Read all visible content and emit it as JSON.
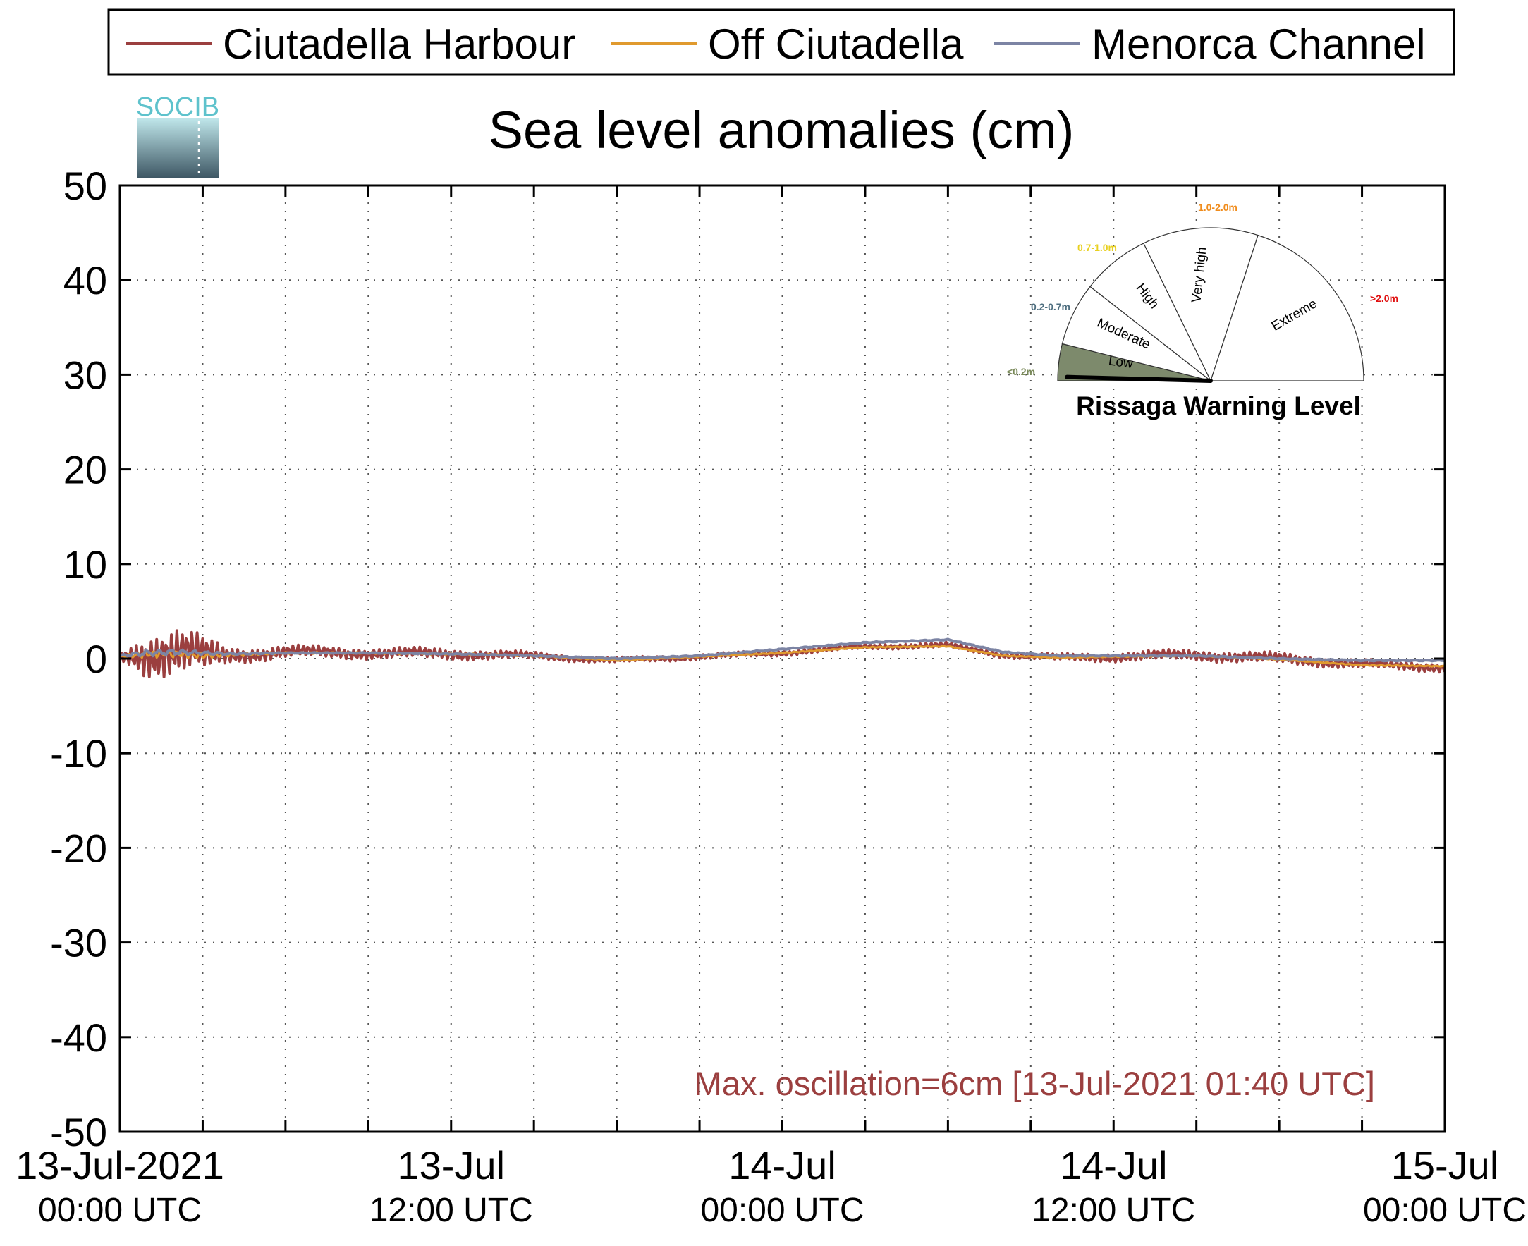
{
  "legend": {
    "items": [
      {
        "label": "Ciutadella Harbour",
        "color": "#9b3f3f"
      },
      {
        "label": "Off Ciutadella",
        "color": "#e09a2e"
      },
      {
        "label": "Menorca Channel",
        "color": "#7c84a4"
      }
    ]
  },
  "logo": {
    "text": "SOCIB"
  },
  "annotation": {
    "text": "Max. oscillation=6cm [13-Jul-2021 01:40 UTC]",
    "color": "#9b3f3f"
  },
  "gauge": {
    "title": "Rissaga Warning Level",
    "needle_value_m": 0.05,
    "sectors": [
      {
        "label": "Low",
        "range": "<0.2m",
        "range_color": "#7a8a5a",
        "active": true,
        "fill": "#7d8a6c"
      },
      {
        "label": "Moderate",
        "range": "0.2-0.7m",
        "range_color": "#4f6f80",
        "active": false,
        "fill": "#ffffff"
      },
      {
        "label": "High",
        "range": "0.7-1.0m",
        "range_color": "#e8d020",
        "active": false,
        "fill": "#ffffff"
      },
      {
        "label": "Very high",
        "range": "1.0-2.0m",
        "range_color": "#f08c1c",
        "active": false,
        "fill": "#ffffff"
      },
      {
        "label": "Extreme",
        "range": ">2.0m",
        "range_color": "#e01010",
        "active": false,
        "fill": "#ffffff"
      }
    ]
  },
  "chart_data": {
    "type": "line",
    "title": "Sea level anomalies (cm)",
    "xlabel": "",
    "ylabel": "",
    "ylim": [
      -50,
      50
    ],
    "yticks": [
      50,
      40,
      30,
      20,
      10,
      0,
      -10,
      -20,
      -30,
      -40,
      -50
    ],
    "xlim": [
      "2021-07-13T00:00",
      "2021-07-15T00:00"
    ],
    "xticks": [
      {
        "date": "13-Jul-2021",
        "time": "00:00 UTC"
      },
      {
        "date": "13-Jul",
        "time": "12:00 UTC"
      },
      {
        "date": "14-Jul",
        "time": "00:00 UTC"
      },
      {
        "date": "14-Jul",
        "time": "12:00 UTC"
      },
      {
        "date": "15-Jul",
        "time": "00:00 UTC"
      }
    ],
    "grid": true,
    "legend_position": "top",
    "series": [
      {
        "name": "Ciutadella Harbour",
        "color": "#9b3f3f",
        "x": [
          "2021-07-13T00:00",
          "2021-07-13T01:00",
          "2021-07-13T02:00",
          "2021-07-13T03:00",
          "2021-07-13T04:00",
          "2021-07-13T06:00",
          "2021-07-13T09:00",
          "2021-07-13T12:00",
          "2021-07-13T15:00",
          "2021-07-13T18:00",
          "2021-07-13T21:00",
          "2021-07-14T00:00",
          "2021-07-14T03:00",
          "2021-07-14T06:00",
          "2021-07-14T08:00",
          "2021-07-14T10:00",
          "2021-07-14T12:00",
          "2021-07-14T15:00",
          "2021-07-14T18:00",
          "2021-07-14T21:00",
          "2021-07-15T00:00"
        ],
        "y": [
          0.2,
          0.8,
          0.6,
          0.2,
          0.4,
          0.7,
          0.6,
          0.5,
          0.3,
          -0.2,
          0.2,
          0.6,
          1.3,
          1.4,
          0.4,
          0.1,
          0.2,
          0.4,
          0.0,
          -0.6,
          -0.9
        ],
        "oscillation": [
          0.4,
          2.5,
          2.8,
          2.0,
          0.9,
          0.7,
          0.6,
          0.6,
          0.4,
          0.3,
          0.3,
          0.3,
          0.3,
          0.3,
          0.3,
          0.4,
          0.5,
          0.6,
          0.6,
          0.5,
          0.5
        ]
      },
      {
        "name": "Off Ciutadella",
        "color": "#e09a2e",
        "x": [
          "2021-07-13T00:00",
          "2021-07-13T01:00",
          "2021-07-13T02:00",
          "2021-07-13T03:00",
          "2021-07-13T04:00",
          "2021-07-13T06:00",
          "2021-07-13T09:00",
          "2021-07-13T12:00",
          "2021-07-13T15:00",
          "2021-07-13T18:00",
          "2021-07-13T21:00",
          "2021-07-14T00:00",
          "2021-07-14T03:00",
          "2021-07-14T06:00",
          "2021-07-14T08:00",
          "2021-07-14T10:00",
          "2021-07-14T12:00",
          "2021-07-14T15:00",
          "2021-07-14T18:00",
          "2021-07-14T21:00",
          "2021-07-15T00:00"
        ],
        "y": [
          0.2,
          0.5,
          0.5,
          0.3,
          0.4,
          0.6,
          0.6,
          0.5,
          0.3,
          -0.2,
          0.2,
          0.6,
          1.2,
          1.3,
          0.3,
          0.1,
          0.2,
          0.3,
          -0.1,
          -0.7,
          -0.8
        ],
        "oscillation": [
          0.1,
          0.4,
          0.4,
          0.3,
          0.2,
          0.1,
          0.1,
          0.1,
          0.1,
          0.05,
          0.05,
          0.05,
          0.05,
          0.05,
          0.05,
          0.05,
          0.05,
          0.05,
          0.05,
          0.05,
          0.05
        ]
      },
      {
        "name": "Menorca Channel",
        "color": "#7c84a4",
        "x": [
          "2021-07-13T00:00",
          "2021-07-13T01:00",
          "2021-07-13T02:00",
          "2021-07-13T03:00",
          "2021-07-13T04:00",
          "2021-07-13T06:00",
          "2021-07-13T09:00",
          "2021-07-13T12:00",
          "2021-07-13T15:00",
          "2021-07-13T18:00",
          "2021-07-13T21:00",
          "2021-07-14T00:00",
          "2021-07-14T03:00",
          "2021-07-14T06:00",
          "2021-07-14T08:00",
          "2021-07-14T10:00",
          "2021-07-14T12:00",
          "2021-07-14T15:00",
          "2021-07-14T18:00",
          "2021-07-14T21:00",
          "2021-07-15T00:00"
        ],
        "y": [
          0.3,
          0.6,
          0.7,
          0.6,
          0.5,
          0.6,
          0.6,
          0.5,
          0.3,
          0.0,
          0.3,
          1.0,
          1.7,
          2.0,
          0.7,
          0.3,
          0.3,
          0.3,
          0.0,
          -0.2,
          -0.2
        ],
        "oscillation": [
          0.1,
          0.3,
          0.3,
          0.2,
          0.1,
          0.05,
          0.05,
          0.05,
          0.05,
          0.05,
          0.05,
          0.05,
          0.05,
          0.05,
          0.05,
          0.05,
          0.05,
          0.05,
          0.05,
          0.05,
          0.05
        ]
      }
    ]
  }
}
